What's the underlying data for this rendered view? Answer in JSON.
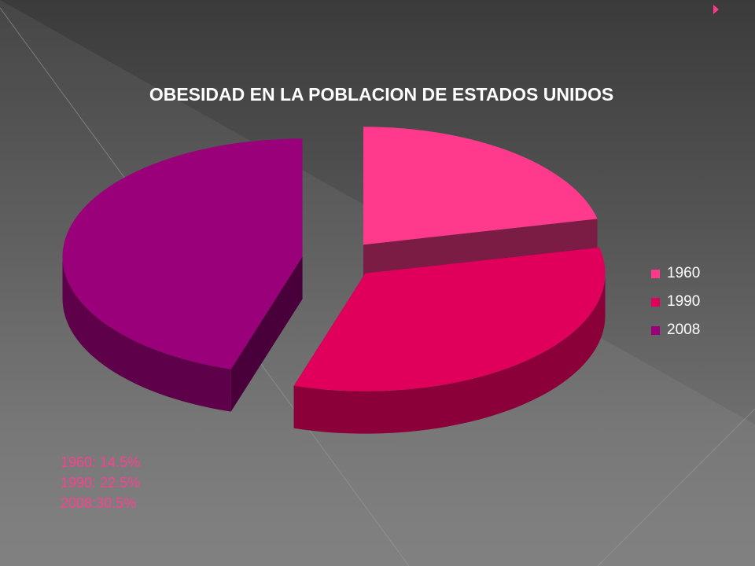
{
  "chart_data": {
    "type": "pie",
    "title": "OBESIDAD EN LA POBLACION DE ESTADOS UNIDOS",
    "categories": [
      "1960",
      "1990",
      "2008"
    ],
    "values": [
      14.5,
      22.5,
      30.5
    ],
    "colors": [
      "#ff3a8c",
      "#e0005c",
      "#990079"
    ],
    "exploded": true,
    "three_d": true,
    "legend_position": "right"
  },
  "notes": [
    "1960: 14.5%",
    "1990: 22.5%",
    "2008:30.5%"
  ]
}
